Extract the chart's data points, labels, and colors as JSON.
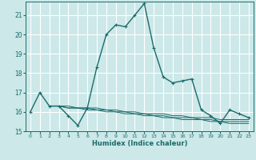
{
  "xlabel": "Humidex (Indice chaleur)",
  "bg_color": "#cce8e8",
  "grid_color": "#ffffff",
  "line_color": "#1a6b6b",
  "xlim": [
    -0.5,
    23.5
  ],
  "ylim": [
    15.0,
    21.7
  ],
  "yticks": [
    15,
    16,
    17,
    18,
    19,
    20,
    21
  ],
  "xticks": [
    0,
    1,
    2,
    3,
    4,
    5,
    6,
    7,
    8,
    9,
    10,
    11,
    12,
    13,
    14,
    15,
    16,
    17,
    18,
    19,
    20,
    21,
    22,
    23
  ],
  "main_x": [
    0,
    1,
    2,
    3,
    4,
    5,
    6,
    7,
    8,
    9,
    10,
    11,
    12,
    13,
    14,
    15,
    16,
    17,
    18,
    19,
    20,
    21,
    22,
    23
  ],
  "main_y": [
    16.0,
    17.0,
    16.3,
    16.3,
    15.8,
    15.3,
    16.2,
    18.3,
    20.0,
    20.5,
    20.4,
    21.0,
    21.6,
    19.3,
    17.8,
    17.5,
    17.6,
    17.7,
    16.1,
    15.8,
    15.4,
    16.1,
    15.9,
    15.7
  ],
  "flat_lines": [
    {
      "x": [
        2,
        3,
        4,
        5,
        6,
        7,
        8,
        9,
        10,
        11,
        12,
        13,
        14,
        15,
        16,
        17,
        18,
        19,
        20,
        21,
        22,
        23
      ],
      "y": [
        16.3,
        16.3,
        16.2,
        16.2,
        16.2,
        16.1,
        16.1,
        16.0,
        16.0,
        15.9,
        15.9,
        15.8,
        15.8,
        15.7,
        15.7,
        15.7,
        15.6,
        15.6,
        15.5,
        15.5,
        15.5,
        15.5
      ]
    },
    {
      "x": [
        2,
        3,
        4,
        5,
        6,
        7,
        8,
        9,
        10,
        11,
        12,
        13,
        14,
        15,
        16,
        17,
        18,
        19,
        20,
        21,
        22,
        23
      ],
      "y": [
        16.3,
        16.3,
        16.2,
        16.2,
        16.1,
        16.1,
        16.0,
        16.0,
        15.9,
        15.9,
        15.8,
        15.8,
        15.7,
        15.7,
        15.6,
        15.6,
        15.6,
        15.5,
        15.5,
        15.4,
        15.4,
        15.4
      ]
    },
    {
      "x": [
        2,
        3,
        4,
        5,
        6,
        7,
        8,
        9,
        10,
        11,
        12,
        13,
        14,
        15,
        16,
        17,
        18,
        19,
        20,
        21,
        22,
        23
      ],
      "y": [
        16.3,
        16.3,
        16.3,
        16.2,
        16.2,
        16.2,
        16.1,
        16.1,
        16.0,
        16.0,
        15.9,
        15.9,
        15.9,
        15.8,
        15.8,
        15.7,
        15.7,
        15.7,
        15.6,
        15.6,
        15.6,
        15.6
      ]
    }
  ]
}
